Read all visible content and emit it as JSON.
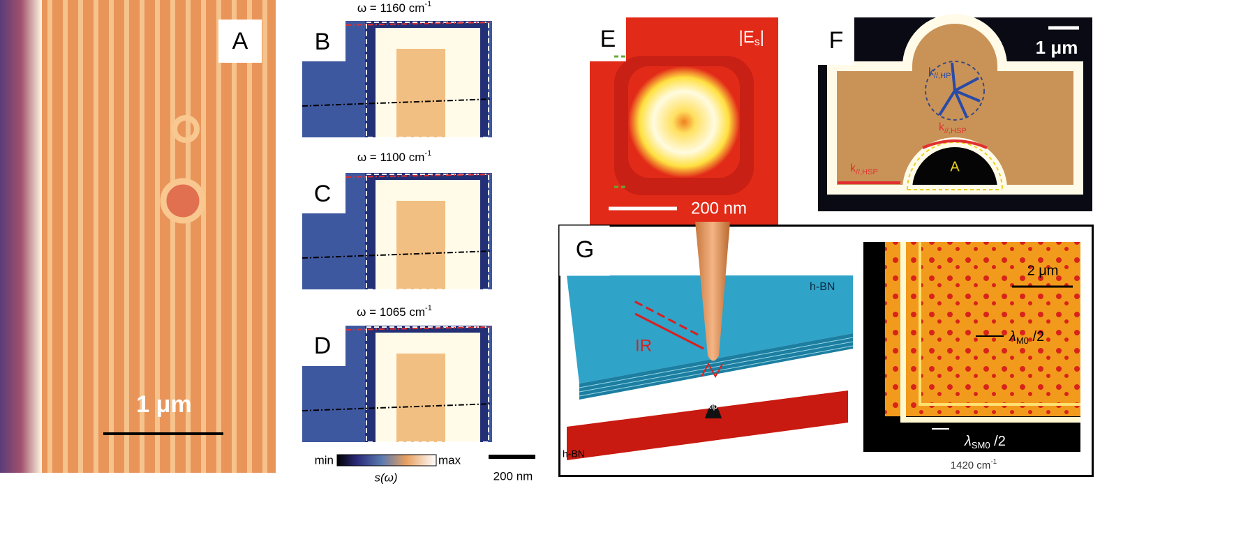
{
  "panels": {
    "A": {
      "label": "A",
      "scale_bar": "1 μm"
    },
    "B": {
      "label": "B",
      "frequency": {
        "text": "ω = 1160 cm",
        "sup": "-1"
      }
    },
    "C": {
      "label": "C",
      "frequency": {
        "text": "ω = 1100 cm",
        "sup": "-1"
      }
    },
    "D": {
      "label": "D",
      "frequency": {
        "text": "ω = 1065 cm",
        "sup": "-1"
      }
    },
    "colorbar": {
      "min": "min",
      "max": "max",
      "quantity": "s(ω)"
    },
    "BCD_scale_bar": "200 nm",
    "E": {
      "label": "E",
      "field": {
        "text": "|E",
        "sub": "s",
        "end": "|"
      },
      "scale_bar": "200 nm"
    },
    "F": {
      "label": "F",
      "scale_bar": "1 μm",
      "annotations": [
        {
          "text": "k",
          "sub": "//,HP"
        },
        {
          "text": "k",
          "sub": "//,HSP"
        },
        {
          "text": "k",
          "sub": "//,HSP"
        }
      ],
      "region": "A"
    },
    "G": {
      "label": "G",
      "material": "h-BN",
      "beam": "IR",
      "tip": "tip",
      "layer": "h-BN",
      "scale_bar": "2 μm",
      "wavelengths": [
        {
          "text": "λ",
          "sub": "M0",
          "end": " /2"
        },
        {
          "text": "λ",
          "sub": "SM0",
          "end": " /2"
        }
      ],
      "frequency": {
        "text": "1420 cm",
        "sup": "-1"
      }
    }
  }
}
